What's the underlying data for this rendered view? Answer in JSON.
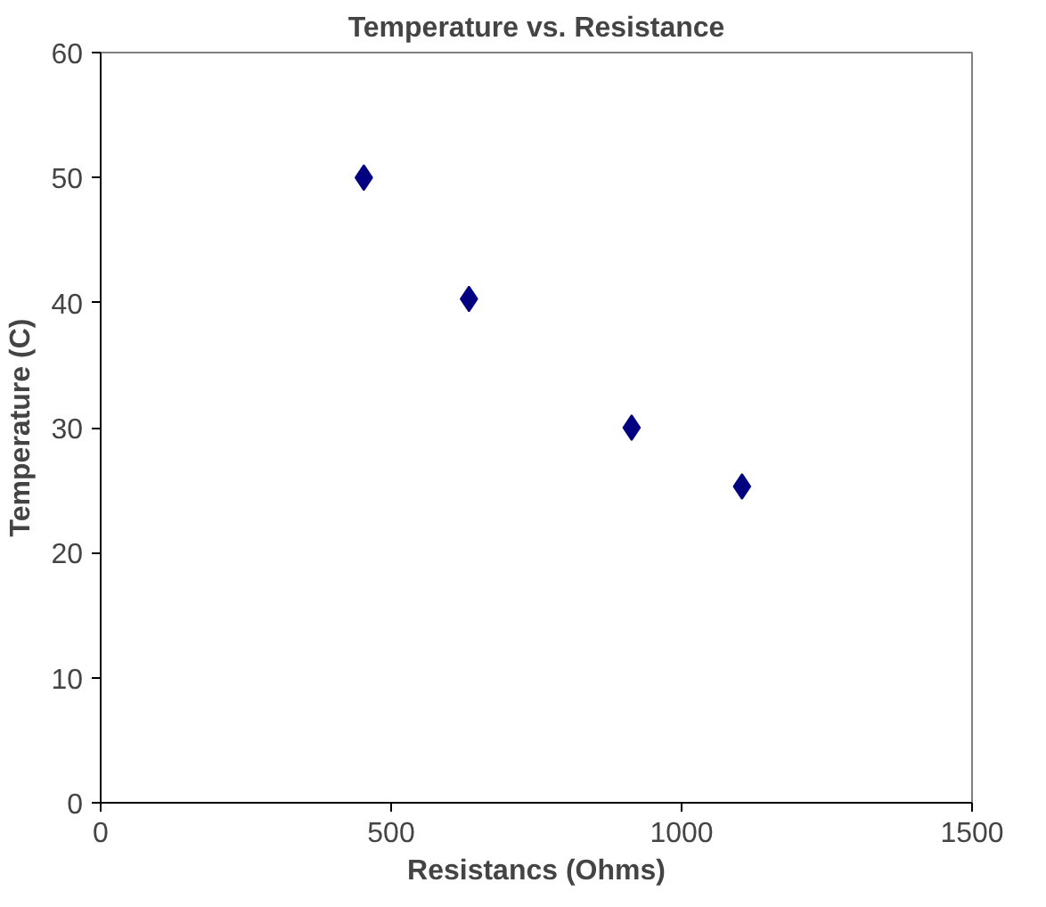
{
  "chart_data": {
    "type": "scatter",
    "title": "Temperature vs. Resistance",
    "xlabel": "Resistancs (Ohms)",
    "ylabel": "Temperature (C)",
    "x": [
      453,
      634,
      914,
      1104
    ],
    "series": [
      {
        "color": "#000080",
        "values": [
          50,
          40.3,
          30,
          25.3
        ]
      }
    ],
    "xlim": [
      0,
      1500
    ],
    "xticks": [
      0,
      500,
      1000,
      1500
    ],
    "ylim": [
      0,
      60
    ],
    "yticks": [
      0,
      10,
      20,
      30,
      40,
      50,
      60
    ],
    "marker": "diamond",
    "grid": false
  }
}
